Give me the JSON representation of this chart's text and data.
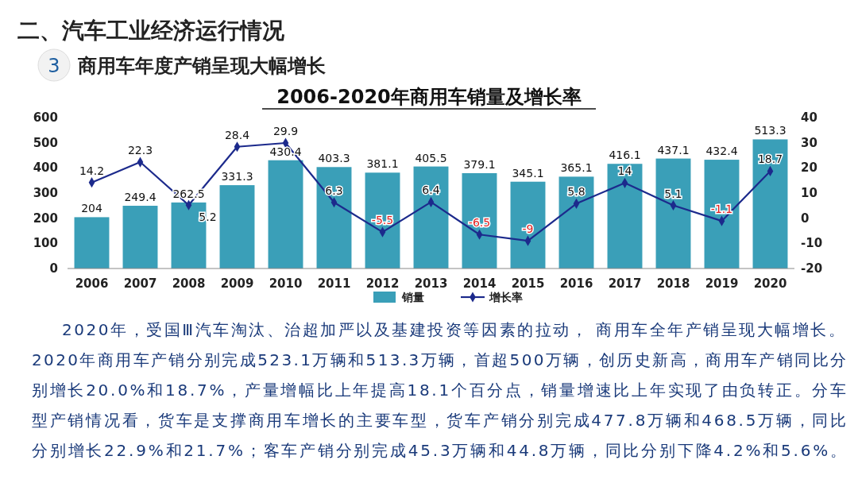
{
  "chart_data": {
    "type": "bar",
    "title": "2006-2020年商用车销量及增长率",
    "categories": [
      "2006",
      "2007",
      "2008",
      "2009",
      "2010",
      "2011",
      "2012",
      "2013",
      "2014",
      "2015",
      "2016",
      "2017",
      "2018",
      "2019",
      "2020"
    ],
    "series": [
      {
        "name": "销量",
        "color": "#3a9fb8",
        "values": [
          204,
          249.4,
          262.5,
          331.3,
          430.4,
          403.3,
          381.1,
          405.5,
          379.1,
          345.1,
          365.1,
          416.1,
          437.1,
          432.4,
          513.3
        ]
      },
      {
        "name": "增长率",
        "type": "line",
        "axis": "y2",
        "color": "#1c2a8c",
        "marker": "diamond",
        "values": [
          14.2,
          22.3,
          5.2,
          28.4,
          29.9,
          6.3,
          -5.5,
          6.4,
          -6.5,
          -9,
          5.8,
          14,
          5.1,
          -1.1,
          18.7
        ]
      }
    ],
    "ylim": [
      0,
      600
    ],
    "yticks": [
      0,
      100,
      200,
      300,
      400,
      500,
      600
    ],
    "y2lim": [
      -20,
      40
    ],
    "y2ticks": [
      -20,
      -10,
      0,
      10,
      20,
      30,
      40
    ],
    "data_labels": true,
    "legend": "bottom",
    "grid": false,
    "annotations": [
      "二、汽车工业经济运行情况",
      "3",
      "商用车年度产销呈现大幅增长",
      "2020年，受国Ⅲ汽车淘汰、治超加严以及基建投资等因素的拉动， 商用车全年产销呈现大幅增长。",
      "2020年商用车产销分别完成523.1万辆和513.3万辆，首超500万辆，创历史新高，商用车产销同比分",
      "别增长20.0%和18.7%，产量增幅比上年提高18.1个百分点，销量增速比上年实现了由负转正。分车",
      "型产销情况看，货车是支撑商用车增长的主要车型，货车产销分别完成477.8万辆和468.5万辆，同比",
      "分别增长22.9%和21.7%；客车产销分别完成45.3万辆和44.8万辆，同比分别下降4.2%和5.6%。"
    ]
  }
}
